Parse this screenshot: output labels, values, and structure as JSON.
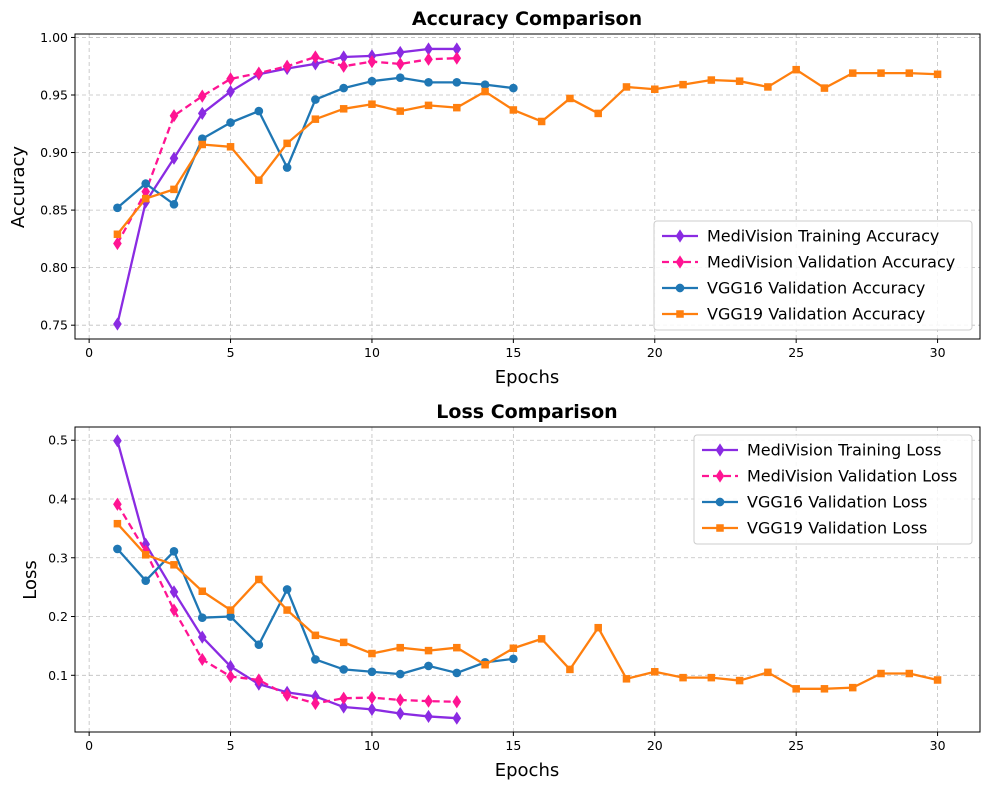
{
  "chart_data": [
    {
      "type": "line",
      "title": "Accuracy Comparison",
      "xlabel": "Epochs",
      "ylabel": "Accuracy",
      "xlim": [
        -0.5,
        31.5
      ],
      "ylim": [
        0.738,
        1.003
      ],
      "xticks": [
        0,
        5,
        10,
        15,
        20,
        25,
        30
      ],
      "yticks": [
        0.75,
        0.8,
        0.85,
        0.9,
        0.95,
        1.0
      ],
      "ytick_labels": [
        "0.75",
        "0.80",
        "0.85",
        "0.90",
        "0.95",
        "1.00"
      ],
      "grid": true,
      "legend_position": "lower-right",
      "series": [
        {
          "name": "MediVision Training Accuracy",
          "color": "#8a2be2",
          "dash": "solid",
          "marker": "diamond",
          "x": [
            1,
            2,
            3,
            4,
            5,
            6,
            7,
            8,
            9,
            10,
            11,
            12,
            13
          ],
          "y": [
            0.751,
            0.857,
            0.895,
            0.934,
            0.953,
            0.968,
            0.973,
            0.977,
            0.983,
            0.984,
            0.987,
            0.99,
            0.99
          ]
        },
        {
          "name": "MediVision Validation Accuracy",
          "color": "#ff1493",
          "dash": "dashed",
          "marker": "diamond",
          "x": [
            1,
            2,
            3,
            4,
            5,
            6,
            7,
            8,
            9,
            10,
            11,
            12,
            13
          ],
          "y": [
            0.821,
            0.866,
            0.932,
            0.949,
            0.964,
            0.969,
            0.975,
            0.983,
            0.975,
            0.979,
            0.977,
            0.981,
            0.982
          ]
        },
        {
          "name": "VGG16 Validation Accuracy",
          "color": "#1f77b4",
          "dash": "solid",
          "marker": "circle",
          "x": [
            1,
            2,
            3,
            4,
            5,
            6,
            7,
            8,
            9,
            10,
            11,
            12,
            13,
            14,
            15
          ],
          "y": [
            0.852,
            0.873,
            0.855,
            0.912,
            0.926,
            0.936,
            0.887,
            0.946,
            0.956,
            0.962,
            0.965,
            0.961,
            0.961,
            0.959,
            0.956
          ]
        },
        {
          "name": "VGG19 Validation Accuracy",
          "color": "#ff7f0e",
          "dash": "solid",
          "marker": "square",
          "x": [
            1,
            2,
            3,
            4,
            5,
            6,
            7,
            8,
            9,
            10,
            11,
            12,
            13,
            14,
            15,
            16,
            17,
            18,
            19,
            20,
            21,
            22,
            23,
            24,
            25,
            26,
            27,
            28,
            29,
            30
          ],
          "y": [
            0.829,
            0.86,
            0.868,
            0.907,
            0.905,
            0.876,
            0.908,
            0.929,
            0.938,
            0.942,
            0.936,
            0.941,
            0.939,
            0.953,
            0.937,
            0.927,
            0.947,
            0.934,
            0.957,
            0.955,
            0.959,
            0.963,
            0.962,
            0.957,
            0.972,
            0.956,
            0.969,
            0.969,
            0.969,
            0.968
          ]
        }
      ]
    },
    {
      "type": "line",
      "title": "Loss Comparison",
      "xlabel": "Epochs",
      "ylabel": "Loss",
      "xlim": [
        -0.5,
        31.5
      ],
      "ylim": [
        0.0035,
        0.5225
      ],
      "xticks": [
        0,
        5,
        10,
        15,
        20,
        25,
        30
      ],
      "yticks": [
        0.1,
        0.2,
        0.3,
        0.4,
        0.5
      ],
      "ytick_labels": [
        "0.1",
        "0.2",
        "0.3",
        "0.4",
        "0.5"
      ],
      "grid": true,
      "legend_position": "upper-right",
      "series": [
        {
          "name": "MediVision Training Loss",
          "color": "#8a2be2",
          "dash": "solid",
          "marker": "diamond",
          "x": [
            1,
            2,
            3,
            4,
            5,
            6,
            7,
            8,
            9,
            10,
            11,
            12,
            13
          ],
          "y": [
            0.499,
            0.323,
            0.242,
            0.165,
            0.115,
            0.085,
            0.071,
            0.064,
            0.046,
            0.042,
            0.035,
            0.03,
            0.027
          ]
        },
        {
          "name": "MediVision Validation Loss",
          "color": "#ff1493",
          "dash": "dashed",
          "marker": "diamond",
          "x": [
            1,
            2,
            3,
            4,
            5,
            6,
            7,
            8,
            9,
            10,
            11,
            12,
            13
          ],
          "y": [
            0.391,
            0.311,
            0.211,
            0.127,
            0.098,
            0.092,
            0.066,
            0.052,
            0.061,
            0.062,
            0.058,
            0.056,
            0.055
          ]
        },
        {
          "name": "VGG16 Validation Loss",
          "color": "#1f77b4",
          "dash": "solid",
          "marker": "circle",
          "x": [
            1,
            2,
            3,
            4,
            5,
            6,
            7,
            8,
            9,
            10,
            11,
            12,
            13,
            14,
            15
          ],
          "y": [
            0.315,
            0.261,
            0.311,
            0.198,
            0.2,
            0.152,
            0.246,
            0.127,
            0.11,
            0.106,
            0.102,
            0.116,
            0.104,
            0.122,
            0.128
          ]
        },
        {
          "name": "VGG19 Validation Loss",
          "color": "#ff7f0e",
          "dash": "solid",
          "marker": "square",
          "x": [
            1,
            2,
            3,
            4,
            5,
            6,
            7,
            8,
            9,
            10,
            11,
            12,
            13,
            14,
            15,
            16,
            17,
            18,
            19,
            20,
            21,
            22,
            23,
            24,
            25,
            26,
            27,
            28,
            29,
            30
          ],
          "y": [
            0.358,
            0.305,
            0.288,
            0.243,
            0.211,
            0.263,
            0.211,
            0.168,
            0.156,
            0.137,
            0.147,
            0.142,
            0.147,
            0.118,
            0.146,
            0.162,
            0.11,
            0.181,
            0.094,
            0.106,
            0.096,
            0.096,
            0.091,
            0.105,
            0.077,
            0.077,
            0.079,
            0.103,
            0.103,
            0.092
          ]
        }
      ]
    }
  ]
}
